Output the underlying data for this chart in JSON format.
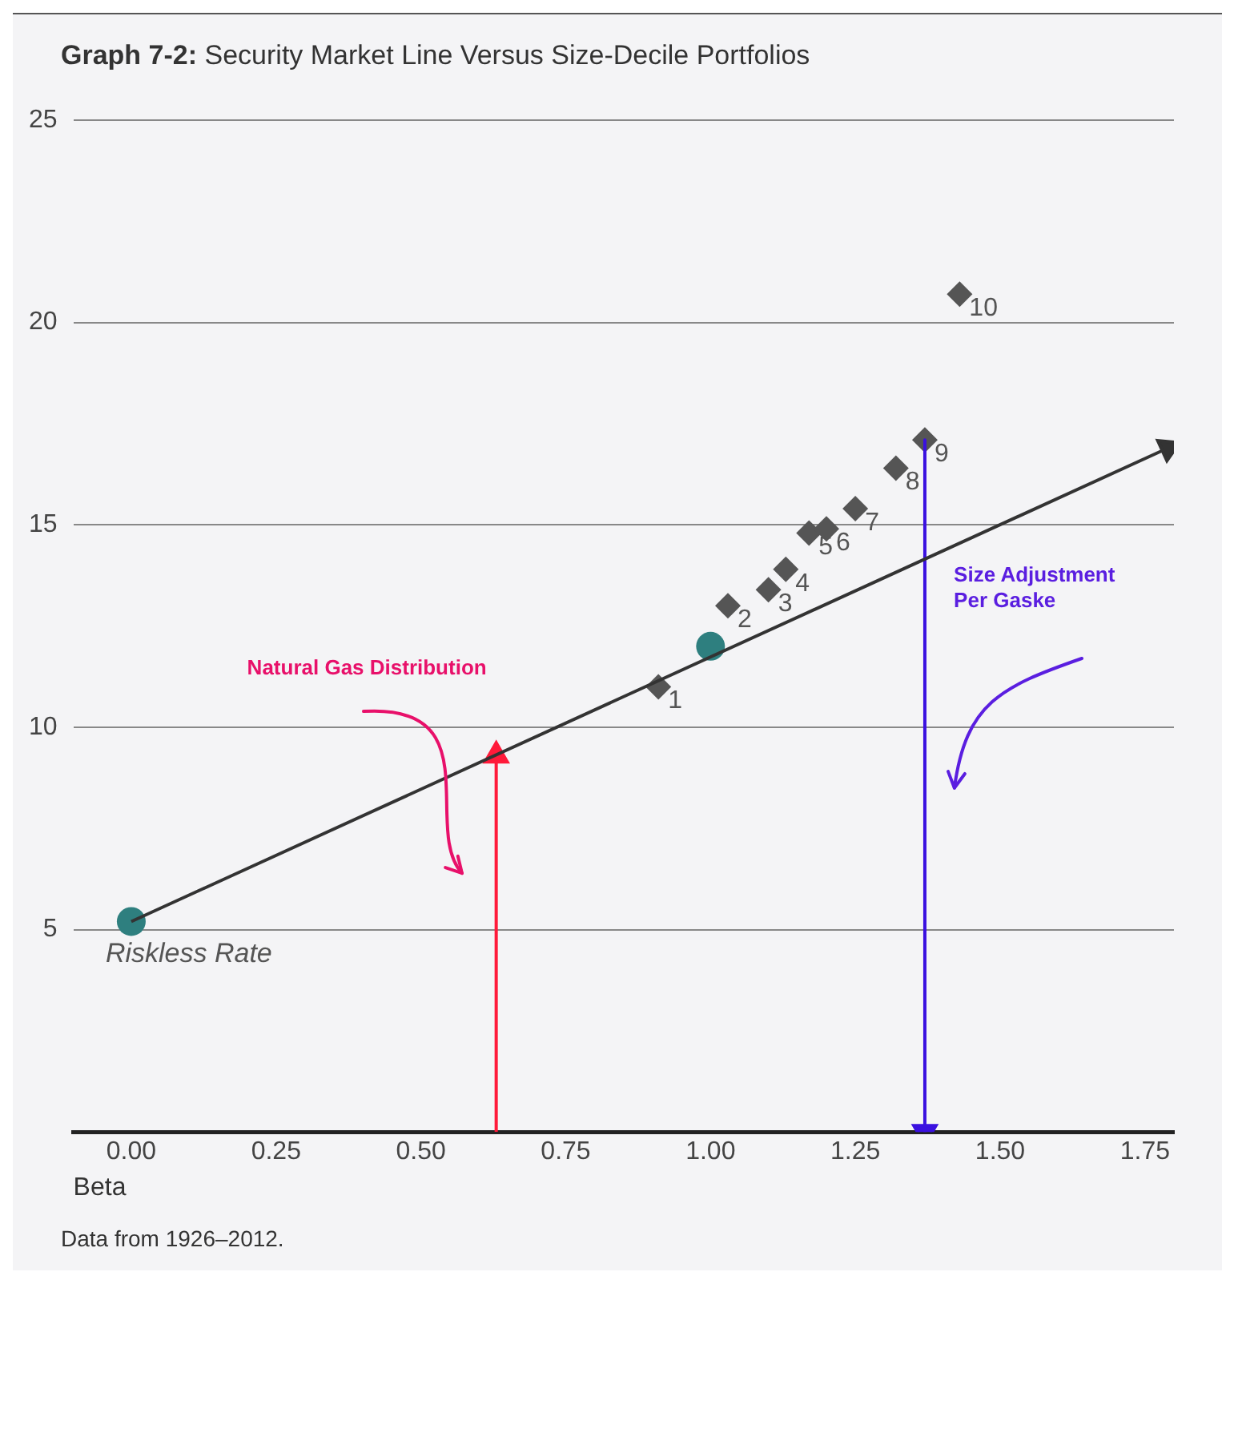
{
  "chart_data": {
    "type": "scatter",
    "title": "Graph 7-2: Security Market Line Versus Size-Decile Portfolios",
    "xlabel": "Beta",
    "xlim": [
      -0.1,
      1.8
    ],
    "xticks": [
      {
        "value": 0,
        "label": "0.00"
      },
      {
        "value": 0.25,
        "label": "0.25"
      },
      {
        "value": 0.5,
        "label": "0.50"
      },
      {
        "value": 0.75,
        "label": "0.75"
      },
      {
        "value": 1,
        "label": "1.00"
      },
      {
        "value": 1.25,
        "label": "1.25"
      },
      {
        "value": 1.5,
        "label": "1.50"
      },
      {
        "value": 1.75,
        "label": "1.75"
      }
    ],
    "ylim": [
      0,
      25
    ],
    "yticks": [
      5,
      10,
      15,
      20,
      25
    ],
    "grid": "y",
    "legend": false,
    "series": [
      {
        "type": "line",
        "color": "#333333",
        "x": [
          0,
          1.79
        ],
        "values": [
          5.2,
          16.9
        ],
        "marker": "triangle"
      },
      {
        "type": "line",
        "color": "#ff1a3a",
        "x": [
          0.63,
          0.63
        ],
        "values": [
          0,
          9.3
        ],
        "marker": "triangle"
      },
      {
        "type": "line",
        "color": "#3a10e0",
        "x": [
          1.37,
          1.37
        ],
        "values": [
          17.1,
          0
        ],
        "marker": "triangle"
      },
      {
        "color": "#2e7f7f",
        "x": [
          0
        ],
        "values": [
          5.2
        ],
        "marker": "circle"
      },
      {
        "color": "#2e7f7f",
        "x": [
          1.0
        ],
        "values": [
          12.0
        ],
        "marker": "circle"
      },
      {
        "color": "#555555",
        "x": [
          0.91,
          1.03,
          1.1,
          1.13,
          1.17,
          1.2,
          1.25,
          1.32,
          1.37,
          1.43
        ],
        "values": [
          11.0,
          13.0,
          13.4,
          13.9,
          14.8,
          14.9,
          15.4,
          16.4,
          17.1,
          20.7
        ],
        "marker": "diamond"
      }
    ],
    "annotations": [
      "Natural Gas Distribution",
      "Size Adjustment Per Gaske",
      {
        "text": "Riskless Rate",
        "x": 0,
        "y": 5.2
      },
      {
        "text": "1",
        "x": 0.91,
        "y": 11.0
      },
      {
        "text": "2",
        "x": 1.03,
        "y": 13.0
      },
      {
        "text": "3",
        "x": 1.1,
        "y": 13.4
      },
      {
        "text": "4",
        "x": 1.13,
        "y": 13.9
      },
      {
        "text": "5",
        "x": 1.17,
        "y": 14.8
      },
      {
        "text": "6",
        "x": 1.2,
        "y": 14.9
      },
      {
        "text": "7",
        "x": 1.25,
        "y": 15.4
      },
      {
        "text": "8",
        "x": 1.32,
        "y": 16.4
      },
      {
        "text": "9",
        "x": 1.37,
        "y": 17.1
      },
      {
        "text": "10",
        "x": 1.43,
        "y": 20.7
      },
      "Data from 1926–2012."
    ]
  }
}
